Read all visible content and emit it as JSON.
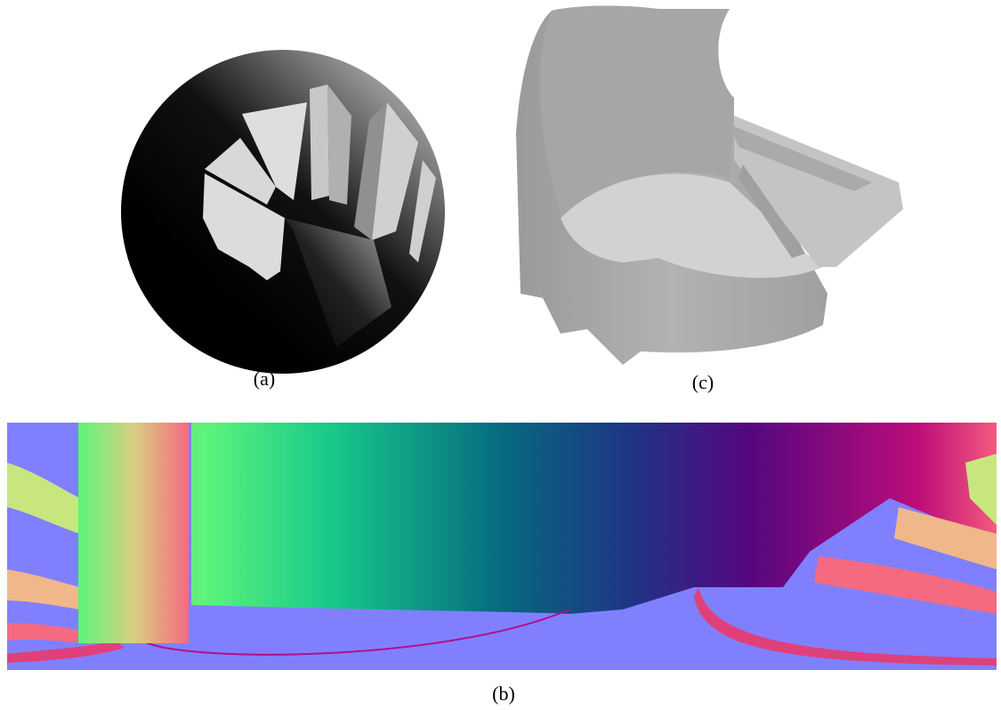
{
  "figure": {
    "panels": [
      {
        "caption": "(a)"
      },
      {
        "caption": "(c)"
      },
      {
        "caption": "(b)"
      }
    ]
  }
}
